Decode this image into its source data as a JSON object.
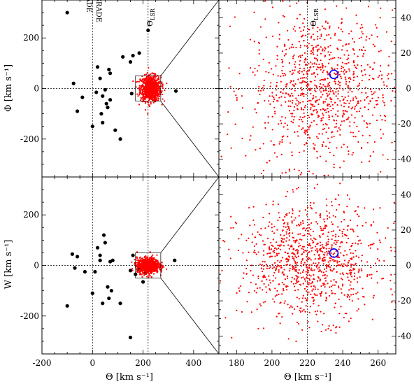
{
  "figure": {
    "bottom_left_xlabel": "Θ [km s⁻¹]",
    "bottom_right_xlabel": "Θ [km s⁻¹]",
    "top_left_ylabel": "Φ [km s⁻¹]",
    "bottom_left_ylabel": "W [km s⁻¹]",
    "annotation_retrograde": "RETROGRADE",
    "annotation_prograde": "PROGRADE",
    "annotation_lsr": "Θ",
    "annotation_lsr_sub": "LSR"
  },
  "chart_data": [
    {
      "type": "scatter",
      "panel": "top-left",
      "xlim": [
        -200,
        500
      ],
      "ylim": [
        -350,
        350
      ],
      "xticks": [
        -200,
        0,
        200,
        400
      ],
      "yticks": [
        -200,
        0,
        200
      ],
      "xlabel": "",
      "ylabel": "Φ [km s⁻¹]",
      "reference_lines": {
        "x": [
          0,
          220
        ],
        "y": [
          0
        ]
      },
      "zoom_box": {
        "x": [
          170,
          270
        ],
        "y": [
          -50,
          50
        ]
      },
      "series": [
        {
          "color": "#000000",
          "marker": "filled-circle-large",
          "points": [
            [
              -100,
              300
            ],
            [
              -75,
              20
            ],
            [
              -60,
              -90
            ],
            [
              -40,
              -35
            ],
            [
              0,
              -150
            ],
            [
              15,
              -15
            ],
            [
              20,
              85
            ],
            [
              30,
              40
            ],
            [
              35,
              -100
            ],
            [
              40,
              -30
            ],
            [
              40,
              -135
            ],
            [
              50,
              -5
            ],
            [
              55,
              -60
            ],
            [
              60,
              -75
            ],
            [
              70,
              -45
            ],
            [
              65,
              75
            ],
            [
              70,
              60
            ],
            [
              90,
              -165
            ],
            [
              110,
              -200
            ],
            [
              120,
              125
            ],
            [
              150,
              105
            ],
            [
              160,
              130
            ],
            [
              155,
              -20
            ],
            [
              185,
              140
            ],
            [
              220,
              230
            ],
            [
              330,
              -10
            ]
          ]
        },
        {
          "color": "#ff0000",
          "marker": "small-dot",
          "description_cloud": {
            "center": [
              230,
              0
            ],
            "spread_x": 20,
            "spread_y": 25,
            "count": 900
          }
        }
      ]
    },
    {
      "type": "scatter",
      "panel": "top-right",
      "xlim": [
        170,
        270
      ],
      "ylim": [
        -50,
        50
      ],
      "yticks": [
        -40,
        -20,
        0,
        20,
        40
      ],
      "reference_lines": {
        "x": [
          220
        ],
        "y": [
          0
        ]
      },
      "circle_marker": {
        "x": 235,
        "y": 8,
        "color": "#0000ff"
      },
      "series": [
        {
          "color": "#ff0000",
          "marker": "small-dot",
          "description_cloud": {
            "center": [
              228,
              0
            ],
            "spread_x": 20,
            "spread_y": 22,
            "count": 1000
          }
        }
      ]
    },
    {
      "type": "scatter",
      "panel": "bottom-left",
      "xlim": [
        -200,
        500
      ],
      "ylim": [
        -350,
        350
      ],
      "xticks": [
        -200,
        0,
        200,
        400
      ],
      "yticks": [
        -200,
        0,
        200
      ],
      "xlabel": "Θ [km s⁻¹]",
      "ylabel": "W [km s⁻¹]",
      "reference_lines": {
        "x": [
          0,
          220
        ],
        "y": [
          0
        ]
      },
      "zoom_box": {
        "x": [
          170,
          270
        ],
        "y": [
          -50,
          50
        ]
      },
      "series": [
        {
          "color": "#000000",
          "marker": "filled-circle-large",
          "points": [
            [
              -100,
              -160
            ],
            [
              -80,
              45
            ],
            [
              -60,
              35
            ],
            [
              -30,
              -25
            ],
            [
              0,
              -110
            ],
            [
              10,
              -25
            ],
            [
              20,
              70
            ],
            [
              30,
              40
            ],
            [
              30,
              20
            ],
            [
              40,
              -150
            ],
            [
              45,
              120
            ],
            [
              50,
              90
            ],
            [
              60,
              -85
            ],
            [
              65,
              -130
            ],
            [
              70,
              15
            ],
            [
              75,
              -100
            ],
            [
              80,
              20
            ],
            [
              110,
              -150
            ],
            [
              150,
              -20
            ],
            [
              160,
              40
            ],
            [
              170,
              -35
            ],
            [
              180,
              -15
            ],
            [
              190,
              -10
            ],
            [
              200,
              -65
            ],
            [
              210,
              -30
            ],
            [
              215,
              -25
            ],
            [
              220,
              -15
            ],
            [
              150,
              -285
            ],
            [
              325,
              20
            ],
            [
              -70,
              -10
            ]
          ]
        },
        {
          "color": "#ff0000",
          "marker": "small-dot",
          "description_cloud": {
            "center": [
              220,
              0
            ],
            "spread_x": 22,
            "spread_y": 15,
            "count": 900
          }
        }
      ]
    },
    {
      "type": "scatter",
      "panel": "bottom-right",
      "xlim": [
        170,
        270
      ],
      "ylim": [
        -50,
        50
      ],
      "xticks": [
        180,
        200,
        220,
        240,
        260
      ],
      "yticks": [
        -40,
        -20,
        0,
        20,
        40
      ],
      "xlabel": "Θ [km s⁻¹]",
      "reference_lines": {
        "x": [
          220
        ],
        "y": [
          0
        ]
      },
      "circle_marker": {
        "x": 235,
        "y": 7,
        "color": "#0000ff"
      },
      "series": [
        {
          "color": "#ff0000",
          "marker": "small-dot",
          "description_cloud": {
            "center": [
              222,
              2
            ],
            "spread_x": 20,
            "spread_y": 16,
            "count": 1000
          }
        }
      ]
    }
  ]
}
